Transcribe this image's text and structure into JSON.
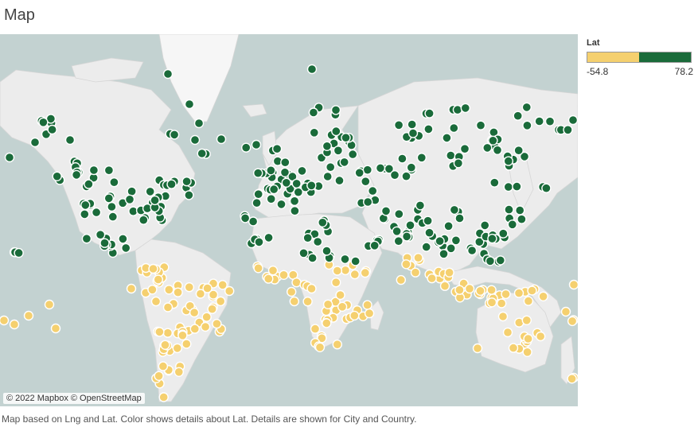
{
  "title": "Map",
  "legend": {
    "field": "Lat",
    "min_label": "-54.8",
    "max_label": "78.2",
    "low_color": "#f5d06f",
    "high_color": "#1a6b3a"
  },
  "attribution": "© 2022 Mapbox © OpenStreetMap",
  "caption": "Map based on Lng and Lat.  Color shows details about Lat.  Details are shown for City and Country.",
  "colors": {
    "ocean": "#c3d2d1",
    "land": "#ececec",
    "ice": "#f6f6f6",
    "dot_north": "#1a6b3a",
    "dot_south": "#f5d06f"
  }
}
